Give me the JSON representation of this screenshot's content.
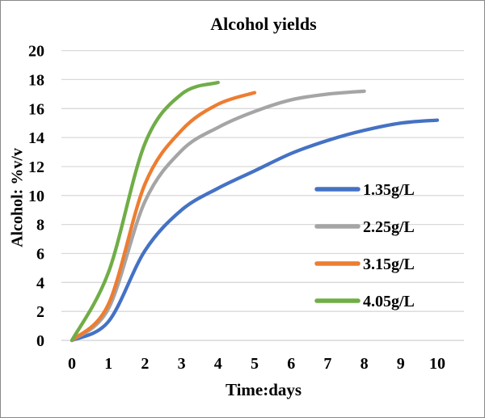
{
  "figure": {
    "border_color": "#898989",
    "background": "#ffffff"
  },
  "chart_data": {
    "type": "line",
    "title": "Alcohol yields",
    "xlabel": "Time:days",
    "ylabel": "Alcohol: %v/v",
    "xlim": [
      0,
      10
    ],
    "ylim": [
      0,
      20
    ],
    "x_ticks": [
      0,
      1,
      2,
      3,
      4,
      5,
      6,
      7,
      8,
      9,
      10
    ],
    "y_ticks": [
      0,
      2,
      4,
      6,
      8,
      10,
      12,
      14,
      16,
      18,
      20
    ],
    "grid": "horizontal",
    "gridline_color": "#d9d9d9",
    "axis_line_color": "#d0d0d0",
    "text_color": "#000000",
    "legend_position": "inside-right",
    "series": [
      {
        "name": "1.35g/L",
        "color": "#4472c4",
        "x": [
          0,
          1,
          2,
          3,
          4,
          5,
          6,
          7,
          8,
          9,
          10
        ],
        "values": [
          0,
          1.3,
          6.2,
          9.0,
          10.5,
          11.7,
          12.9,
          13.8,
          14.5,
          15.0,
          15.2
        ]
      },
      {
        "name": "2.25g/L",
        "color": "#a5a5a5",
        "x": [
          0,
          1,
          2,
          3,
          4,
          5,
          6,
          7,
          8
        ],
        "values": [
          0,
          2.2,
          9.6,
          13.1,
          14.7,
          15.8,
          16.6,
          17.0,
          17.2
        ]
      },
      {
        "name": "3.15g/L",
        "color": "#ed7d31",
        "x": [
          0,
          1,
          2,
          3,
          4,
          5
        ],
        "values": [
          0,
          2.5,
          10.8,
          14.5,
          16.3,
          17.1
        ]
      },
      {
        "name": "4.05g/L",
        "color": "#70ad47",
        "x": [
          0,
          1,
          2,
          3,
          4
        ],
        "values": [
          0,
          4.7,
          13.6,
          17.0,
          17.8
        ]
      }
    ]
  }
}
